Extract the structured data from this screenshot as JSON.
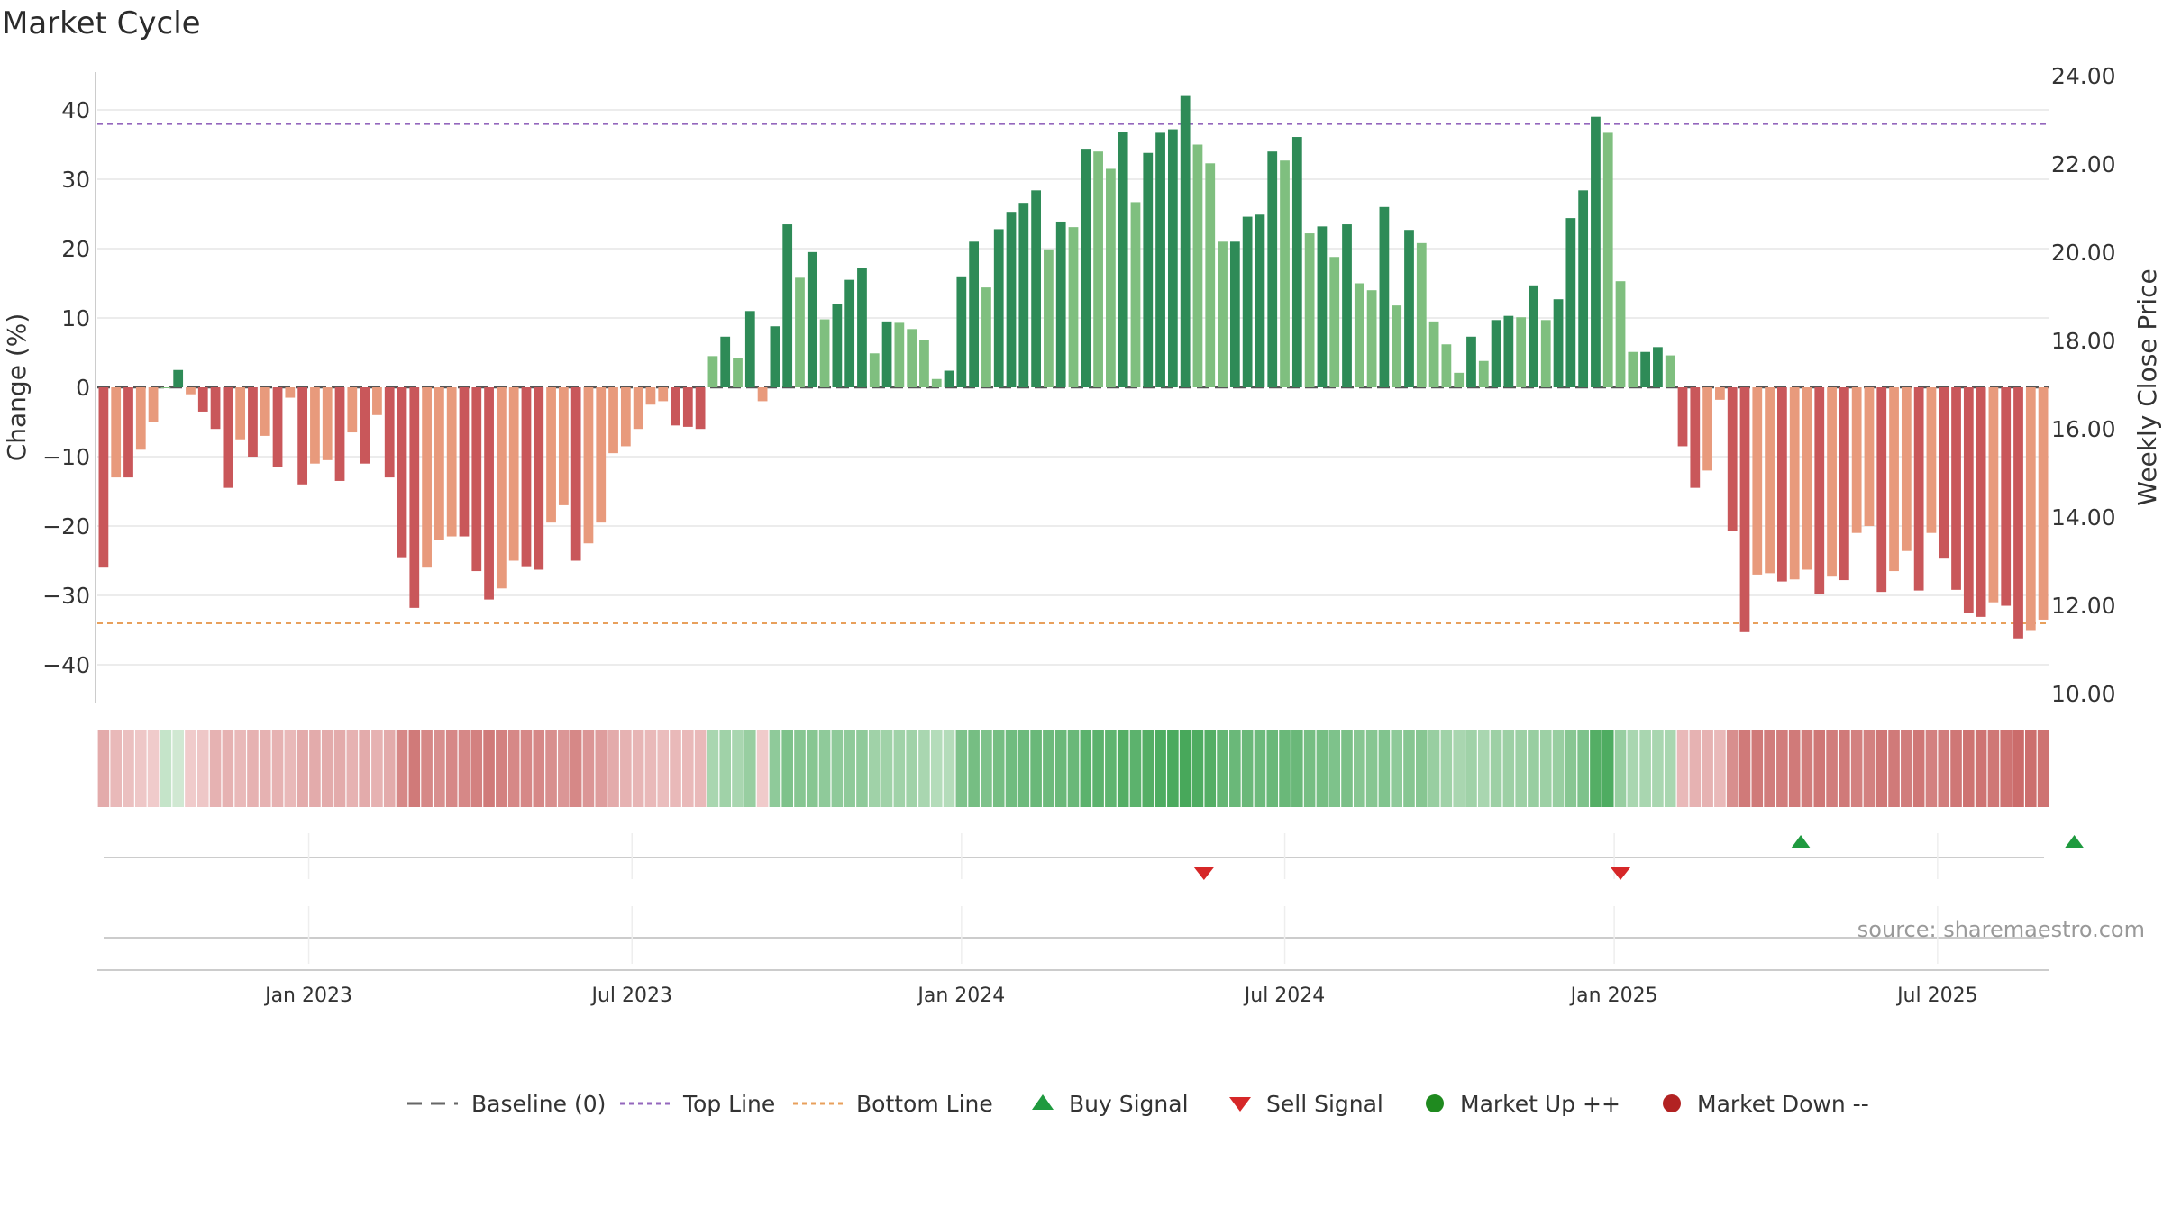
{
  "title": "Market Cycle",
  "source": "source: sharemaestro.com",
  "colors": {
    "bar_up_strong": "#2e8b57",
    "bar_up_weak": "#7fbf7f",
    "bar_down_strong": "#c9575a",
    "bar_down_weak": "#e89a7c",
    "top_line": "#9467bd",
    "bottom_line": "#e8a05c",
    "baseline": "#555555",
    "buy": "#1f9a3f",
    "sell": "#d62728",
    "market_up": "#1f8a1f",
    "market_down": "#b22222",
    "grid": "#e6e6e6"
  },
  "legend": [
    {
      "label": "Baseline (0)",
      "symbol": "dash"
    },
    {
      "label": "Top Line",
      "symbol": "dot-purple"
    },
    {
      "label": "Bottom Line",
      "symbol": "dot-orange"
    },
    {
      "label": "Buy Signal",
      "symbol": "triangle-up"
    },
    {
      "label": "Sell Signal",
      "symbol": "triangle-down"
    },
    {
      "label": "Market Up ++",
      "symbol": "circle-green"
    },
    {
      "label": "Market Down --",
      "symbol": "circle-red"
    }
  ],
  "chart_data": {
    "type": "bar",
    "ylabel": "Change (%)",
    "y2label": "Weekly Close Price",
    "ylim": [
      -45,
      45
    ],
    "y2lim": [
      10,
      24
    ],
    "yticks": [
      "40",
      "30",
      "20",
      "10",
      "0",
      "−10",
      "−20",
      "−30",
      "−40"
    ],
    "y2ticks": [
      "24.00",
      "22.00",
      "20.00",
      "18.00",
      "16.00",
      "14.00",
      "12.00",
      "10.00"
    ],
    "xticks": [
      {
        "label": "Jan 2023",
        "week": 17
      },
      {
        "label": "Jul 2023",
        "week": 43
      },
      {
        "label": "Jan 2024",
        "week": 69.5
      },
      {
        "label": "Jul 2024",
        "week": 95.5
      },
      {
        "label": "Jan 2025",
        "week": 122
      },
      {
        "label": "Jul 2025",
        "week": 148
      }
    ],
    "top_line": 38,
    "bottom_line": -34,
    "series": [
      {
        "values": [
          -26,
          -13,
          -13,
          -9,
          -5,
          0,
          2.5,
          -1,
          -3.5,
          -6,
          -14.5,
          -7.5,
          -10,
          -7,
          -11.5,
          -1.5,
          -14,
          -11,
          -10.5,
          -13.5,
          -6.5,
          -11,
          -4,
          -13,
          -24.5,
          -31.8,
          -26,
          -22,
          -21.5,
          -21.5,
          -26.5,
          -30.6,
          -29,
          -25,
          -25.8,
          -26.3,
          -19.5,
          -17,
          -25,
          -22.5,
          -19.5,
          -9.5,
          -8.5,
          -6,
          -2.5,
          -2,
          -5.5,
          -5.7,
          -6,
          4.5,
          7.3,
          4.2,
          11,
          -2,
          8.8,
          23.5,
          15.8,
          19.5,
          9.8,
          12,
          15.5,
          17.2,
          4.9,
          9.5,
          9.3,
          8.4,
          6.8,
          1.2,
          2.4,
          16,
          21,
          14.4,
          22.8,
          25.3,
          26.6,
          28.4,
          19.9,
          23.9,
          23.1,
          34.4,
          34,
          31.5,
          36.8,
          26.7,
          33.8,
          36.7,
          37.2,
          42,
          35,
          32.3,
          21,
          21,
          24.6,
          24.9,
          34,
          32.7,
          36.1,
          22.2,
          23.2,
          18.8,
          23.5,
          15,
          14,
          26,
          11.8,
          22.7,
          20.8,
          9.5,
          6.2,
          2.1,
          7.3,
          3.8,
          9.7,
          10.3,
          10.1,
          14.7,
          9.7,
          12.7,
          24.4,
          28.4,
          39,
          36.7,
          15.3,
          5.1,
          5.1,
          5.8,
          4.6,
          -8.5,
          -14.5,
          -12,
          -1.8,
          -20.7,
          -35.3,
          -27,
          -26.8,
          -28,
          -27.7,
          -26.3,
          -29.8,
          -27.3,
          -27.8,
          -21,
          -20,
          -29.5,
          -26.5,
          -23.6,
          -29.3,
          -21,
          -24.7,
          -29.2,
          -32.5,
          -33.1,
          -31,
          -31.5,
          -36.2,
          -35,
          -33.5
        ]
      }
    ],
    "heat_strip": [
      -0.35,
      -0.25,
      -0.2,
      -0.15,
      -0.12,
      0.18,
      0.12,
      -0.12,
      -0.15,
      -0.3,
      -0.3,
      -0.25,
      -0.3,
      -0.3,
      -0.3,
      -0.25,
      -0.35,
      -0.35,
      -0.35,
      -0.35,
      -0.3,
      -0.35,
      -0.3,
      -0.35,
      -0.6,
      -0.7,
      -0.6,
      -0.55,
      -0.6,
      -0.6,
      -0.65,
      -0.7,
      -0.65,
      -0.6,
      -0.6,
      -0.6,
      -0.55,
      -0.5,
      -0.6,
      -0.5,
      -0.45,
      -0.35,
      -0.3,
      -0.28,
      -0.25,
      -0.22,
      -0.25,
      -0.25,
      -0.25,
      0.35,
      0.4,
      0.35,
      0.45,
      -0.12,
      0.5,
      0.6,
      0.55,
      0.55,
      0.5,
      0.5,
      0.5,
      0.5,
      0.4,
      0.4,
      0.4,
      0.4,
      0.35,
      0.28,
      0.28,
      0.6,
      0.65,
      0.6,
      0.65,
      0.68,
      0.7,
      0.72,
      0.7,
      0.72,
      0.72,
      0.8,
      0.8,
      0.78,
      0.85,
      0.8,
      0.85,
      0.88,
      0.9,
      0.92,
      0.88,
      0.85,
      0.75,
      0.72,
      0.72,
      0.7,
      0.72,
      0.72,
      0.72,
      0.65,
      0.65,
      0.6,
      0.62,
      0.55,
      0.55,
      0.58,
      0.5,
      0.55,
      0.55,
      0.45,
      0.4,
      0.35,
      0.4,
      0.35,
      0.42,
      0.42,
      0.42,
      0.45,
      0.42,
      0.45,
      0.55,
      0.6,
      0.85,
      0.88,
      0.45,
      0.35,
      0.35,
      0.35,
      0.35,
      -0.25,
      -0.3,
      -0.3,
      -0.25,
      -0.55,
      -0.7,
      -0.7,
      -0.68,
      -0.68,
      -0.7,
      -0.68,
      -0.72,
      -0.68,
      -0.7,
      -0.65,
      -0.65,
      -0.72,
      -0.7,
      -0.68,
      -0.72,
      -0.65,
      -0.68,
      -0.72,
      -0.75,
      -0.75,
      -0.72,
      -0.75,
      -0.8,
      -0.78,
      -0.75
    ],
    "buy_signals": [
      {
        "week": 137
      },
      {
        "week": 159
      }
    ],
    "sell_signals": [
      {
        "week": 89
      },
      {
        "week": 122.5
      }
    ]
  }
}
